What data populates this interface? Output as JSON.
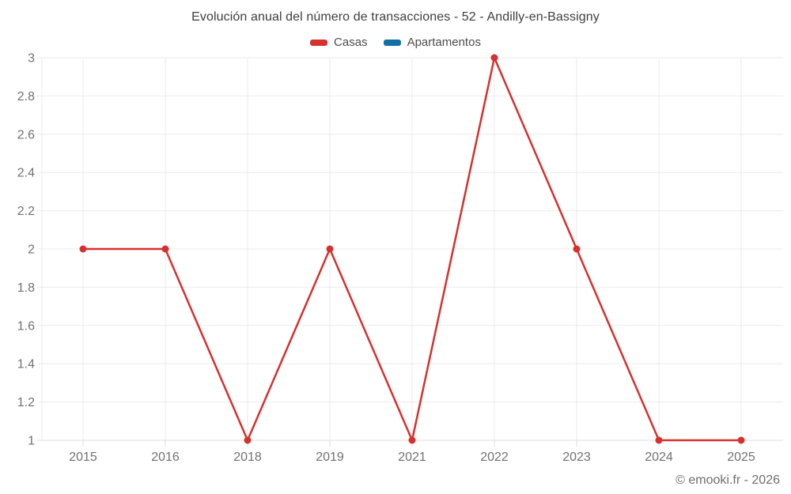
{
  "header": {
    "title": "Evolución anual del número de transacciones - 52 - Andilly-en-Bassigny"
  },
  "legend": {
    "items": [
      {
        "label": "Casas",
        "color": "#d5312d"
      },
      {
        "label": "Apartamentos",
        "color": "#1170a3"
      }
    ]
  },
  "footer": {
    "credit": "© emooki.fr - 2026"
  },
  "chart_data": {
    "type": "line",
    "title": "Evolución anual del número de transacciones - 52 - Andilly-en-Bassigny",
    "categories": [
      "2015",
      "2016",
      "2018",
      "2019",
      "2021",
      "2022",
      "2023",
      "2024",
      "2025"
    ],
    "series": [
      {
        "name": "Casas",
        "color": "#d5312d",
        "values": [
          2,
          2,
          1,
          2,
          1,
          3,
          2,
          1,
          1
        ]
      },
      {
        "name": "Apartamentos",
        "color": "#1170a3",
        "values": [
          null,
          null,
          null,
          null,
          null,
          null,
          null,
          null,
          null
        ]
      }
    ],
    "xlabel": "",
    "ylabel": "",
    "ylim": [
      1,
      3
    ],
    "ytick_step": 0.2,
    "ytick_labels": [
      "1",
      "1.2",
      "1.4",
      "1.6",
      "1.8",
      "2",
      "2.2",
      "2.4",
      "2.6",
      "2.8",
      "3"
    ],
    "grid": true,
    "legend_position": "top"
  }
}
